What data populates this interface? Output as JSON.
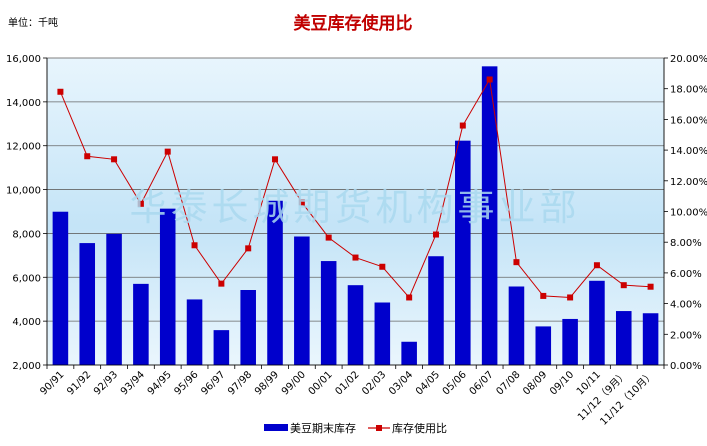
{
  "chart_data": {
    "type": "bar",
    "title": "美豆库存使用比",
    "unit_label": "单位：千吨",
    "watermark": "华泰长城期货机构事业部",
    "categories": [
      "90/91",
      "91/92",
      "92/93",
      "93/94",
      "94/95",
      "95/96",
      "96/97",
      "97/98",
      "98/99",
      "99/00",
      "00/01",
      "01/02",
      "02/03",
      "03/04",
      "04/05",
      "05/06",
      "06/07",
      "07/08",
      "08/09",
      "09/10",
      "10/11",
      "11/12（9月）",
      "11/12（10月）"
    ],
    "series": [
      {
        "name": "美豆期末库存",
        "type": "bar",
        "axis": "left",
        "color": "#0000cc",
        "values": [
          8990,
          7560,
          7980,
          5700,
          9130,
          4990,
          3590,
          5420,
          9490,
          7860,
          6740,
          5640,
          4850,
          3060,
          6960,
          12230,
          15620,
          5580,
          3760,
          4100,
          5840,
          4460,
          4360
        ]
      },
      {
        "name": "库存使用比",
        "type": "line",
        "axis": "right",
        "color": "#cc0000",
        "values": [
          17.8,
          13.6,
          13.4,
          10.5,
          13.9,
          7.8,
          5.3,
          7.6,
          13.4,
          10.6,
          8.3,
          7.0,
          6.4,
          4.4,
          8.5,
          15.6,
          18.6,
          6.7,
          4.5,
          4.4,
          6.5,
          5.2,
          5.1
        ]
      }
    ],
    "y_left": {
      "min": 2000,
      "max": 16000,
      "step": 2000,
      "tick_labels": [
        "2,000",
        "4,000",
        "6,000",
        "8,000",
        "10,000",
        "12,000",
        "14,000",
        "16,000"
      ]
    },
    "y_right": {
      "min": 0,
      "max": 20,
      "step": 2,
      "tick_labels": [
        "0.00%",
        "2.00%",
        "4.00%",
        "6.00%",
        "8.00%",
        "10.00%",
        "12.00%",
        "14.00%",
        "16.00%",
        "18.00%",
        "20.00%"
      ]
    },
    "grid": true,
    "legend_position": "bottom-center"
  },
  "colors": {
    "plot_bg_top": "#e8f5fd",
    "plot_bg_mid": "#c4e4f7",
    "plot_bg_bottom": "#eaf6fd",
    "grid": "#666666",
    "title": "#c00000"
  }
}
